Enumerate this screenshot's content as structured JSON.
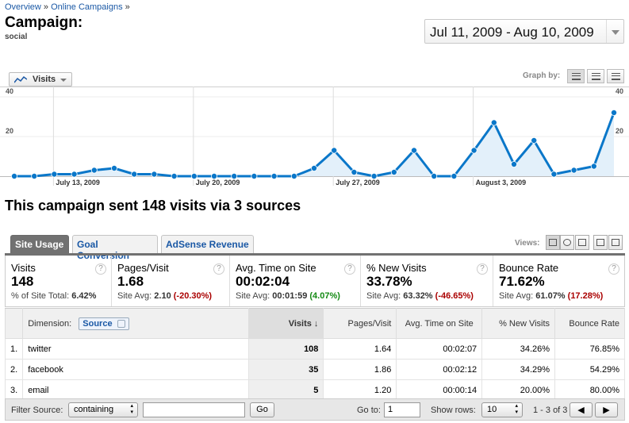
{
  "breadcrumb": {
    "items": [
      "Overview",
      "Online Campaigns"
    ],
    "sep": "»"
  },
  "header": {
    "title": "Campaign:",
    "subtitle": "social",
    "date_range": "Jul 11, 2009 - Aug 10, 2009"
  },
  "graph_controls": {
    "metric_label": "Visits",
    "graph_by_label": "Graph by:"
  },
  "chart_data": {
    "type": "area",
    "series": [
      {
        "name": "Visits",
        "values": [
          0,
          0,
          1,
          1,
          3,
          4,
          1,
          1,
          0,
          0,
          0,
          0,
          0,
          0,
          0,
          4,
          13,
          2,
          0,
          2,
          13,
          0,
          0,
          13,
          27,
          6,
          18,
          1,
          3,
          5,
          32
        ]
      }
    ],
    "ylim": [
      0,
      40
    ],
    "yticks_left": [
      "40",
      "20"
    ],
    "yticks_right": [
      "40",
      "20"
    ],
    "xtick_labels": [
      "July 13, 2009",
      "July 20, 2009",
      "July 27, 2009",
      "August 3, 2009"
    ],
    "xtick_indices": [
      2,
      9,
      16,
      23
    ],
    "grid": true,
    "color": "#0a77c9",
    "fill": "#e3f0fa"
  },
  "summary_headline": "This campaign sent 148 visits via 3 sources",
  "tabs": [
    {
      "label": "Site Usage"
    },
    {
      "label": "Goal Conversion"
    },
    {
      "label": "AdSense Revenue"
    }
  ],
  "views_label": "Views:",
  "scorecard": [
    {
      "name": "Visits",
      "value": "148",
      "sub_label": "% of Site Total:",
      "sub_value": "6.42%",
      "delta": ""
    },
    {
      "name": "Pages/Visit",
      "value": "1.68",
      "sub_label": "Site Avg:",
      "sub_value": "2.10",
      "delta": "(-20.30%)"
    },
    {
      "name": "Avg. Time on Site",
      "value": "00:02:04",
      "sub_label": "Site Avg:",
      "sub_value": "00:01:59",
      "delta": "(4.07%)"
    },
    {
      "name": "% New Visits",
      "value": "33.78%",
      "sub_label": "Site Avg:",
      "sub_value": "63.32%",
      "delta": "(-46.65%)"
    },
    {
      "name": "Bounce Rate",
      "value": "71.62%",
      "sub_label": "Site Avg:",
      "sub_value": "61.07%",
      "delta": "(17.28%)"
    }
  ],
  "table": {
    "dimension_label": "Dimension:",
    "dimension_value": "Source",
    "columns": [
      "Visits",
      "Pages/Visit",
      "Avg. Time on Site",
      "% New Visits",
      "Bounce Rate"
    ],
    "rows": [
      {
        "idx": "1.",
        "source": "twitter",
        "visits": "108",
        "ppv": "1.64",
        "time": "00:02:07",
        "new": "34.26%",
        "bounce": "76.85%"
      },
      {
        "idx": "2.",
        "source": "facebook",
        "visits": "35",
        "ppv": "1.86",
        "time": "00:02:12",
        "new": "34.29%",
        "bounce": "54.29%"
      },
      {
        "idx": "3.",
        "source": "email",
        "visits": "5",
        "ppv": "1.20",
        "time": "00:00:14",
        "new": "20.00%",
        "bounce": "80.00%"
      }
    ]
  },
  "footer": {
    "filter_label": "Filter Source:",
    "filter_mode": "containing",
    "filter_value": "",
    "go_button": "Go",
    "goto_label": "Go to:",
    "goto_value": "1",
    "show_rows_label": "Show rows:",
    "show_rows_value": "10",
    "range_text": "1 - 3 of 3"
  },
  "colors": {
    "accent": "#1a58a5",
    "positive": "#138a13",
    "negative": "#aa0000",
    "tab_active": "#717171"
  }
}
